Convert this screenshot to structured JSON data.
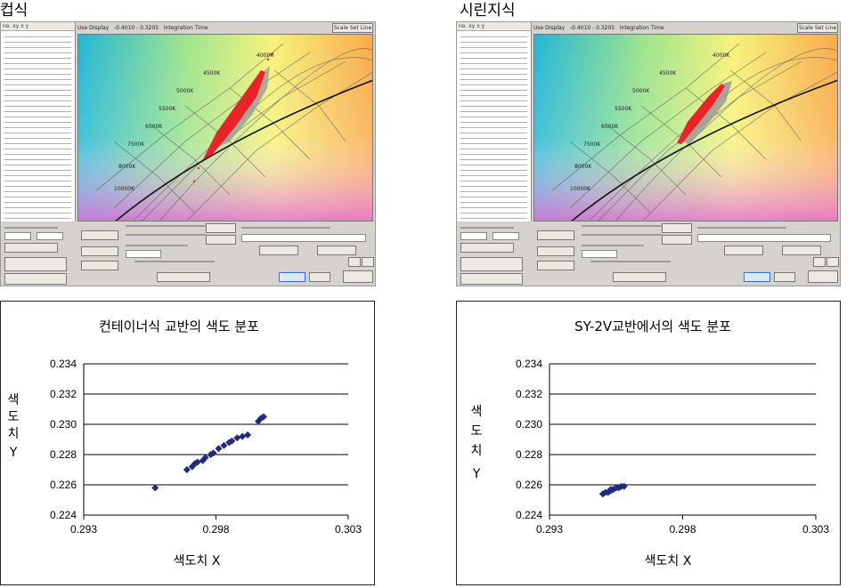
{
  "headings": {
    "left": "컵식",
    "right": "시린지식"
  },
  "panels": [
    {
      "id": "left",
      "topbar": {
        "left_text": "Use Display",
        "range_text": "-0.4010 - 0.3205",
        "time_text": "Integration Time",
        "button": "Scale Set Line"
      },
      "cluster_color": "#e8232a",
      "point_color": "#e8232a"
    },
    {
      "id": "right",
      "topbar": {
        "left_text": "Use Display",
        "range_text": "-0.4010 - 0.3205",
        "time_text": "Integration Time",
        "button": "Scale Set Line"
      },
      "cluster_color": "#e8232a",
      "point_color": "#e8232a"
    }
  ],
  "charts": [
    {
      "title": "컨테이너식 교반의 색도 분포",
      "xlabel": "색도치 X",
      "ylabel": [
        "색",
        "도",
        "치",
        "Y"
      ]
    },
    {
      "title": "SY-2V교반에서의 색도 분포",
      "xlabel": "색도치 X",
      "ylabel": [
        "색",
        "도",
        "치",
        "Y"
      ]
    }
  ],
  "chart_data": [
    {
      "type": "scatter",
      "title": "컨테이너식 교반의 색도 분포",
      "xlabel": "색도치 X",
      "ylabel": "색도치 Y",
      "xlim": [
        0.293,
        0.303
      ],
      "ylim": [
        0.224,
        0.234
      ],
      "xticks": [
        "0.293",
        "0.298",
        "0.303"
      ],
      "yticks": [
        "0.224",
        "0.226",
        "0.228",
        "0.230",
        "0.232",
        "0.234"
      ],
      "grid": "horizontal",
      "marker_color": "#1f2a80",
      "points": [
        [
          0.2957,
          0.2258
        ],
        [
          0.2969,
          0.227
        ],
        [
          0.2971,
          0.2272
        ],
        [
          0.2972,
          0.2274
        ],
        [
          0.2973,
          0.2275
        ],
        [
          0.2975,
          0.2276
        ],
        [
          0.2976,
          0.2278
        ],
        [
          0.2978,
          0.228
        ],
        [
          0.2979,
          0.2281
        ],
        [
          0.2981,
          0.2284
        ],
        [
          0.2983,
          0.2286
        ],
        [
          0.2985,
          0.2288
        ],
        [
          0.2986,
          0.2289
        ],
        [
          0.2988,
          0.2291
        ],
        [
          0.299,
          0.2292
        ],
        [
          0.2992,
          0.2293
        ],
        [
          0.2996,
          0.2302
        ],
        [
          0.2997,
          0.2304
        ],
        [
          0.2998,
          0.2305
        ]
      ]
    },
    {
      "type": "scatter",
      "title": "SY-2V교반에서의 색도 분포",
      "xlabel": "색도치 X",
      "ylabel": "색도치 Y",
      "xlim": [
        0.293,
        0.303
      ],
      "ylim": [
        0.224,
        0.234
      ],
      "xticks": [
        "0.293",
        "0.298",
        "0.303"
      ],
      "yticks": [
        "0.224",
        "0.226",
        "0.228",
        "0.230",
        "0.232",
        "0.234"
      ],
      "grid": "horizontal",
      "marker_color": "#1f2a80",
      "points": [
        [
          0.295,
          0.2254
        ],
        [
          0.2951,
          0.2255
        ],
        [
          0.2952,
          0.2255
        ],
        [
          0.2953,
          0.2256
        ],
        [
          0.2953,
          0.2257
        ],
        [
          0.2954,
          0.2257
        ],
        [
          0.2955,
          0.2258
        ],
        [
          0.2956,
          0.2258
        ],
        [
          0.2957,
          0.2259
        ],
        [
          0.2958,
          0.2259
        ]
      ]
    }
  ]
}
